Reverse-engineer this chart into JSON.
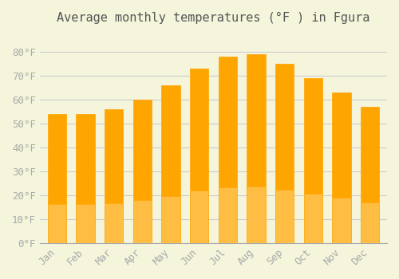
{
  "title": "Average monthly temperatures (°F ) in Fgura",
  "months": [
    "Jan",
    "Feb",
    "Mar",
    "Apr",
    "May",
    "Jun",
    "Jul",
    "Aug",
    "Sep",
    "Oct",
    "Nov",
    "Dec"
  ],
  "values": [
    54,
    54,
    56,
    60,
    66,
    73,
    78,
    79,
    75,
    69,
    63,
    57
  ],
  "bar_color_top": "#FFA500",
  "bar_color_bottom": "#FFD070",
  "ylim": [
    0,
    88
  ],
  "yticks": [
    0,
    10,
    20,
    30,
    40,
    50,
    60,
    70,
    80
  ],
  "background_color": "#F5F5DC",
  "grid_color": "#CCCCCC",
  "title_fontsize": 11,
  "tick_fontsize": 9,
  "font_color": "#AAAAAA"
}
